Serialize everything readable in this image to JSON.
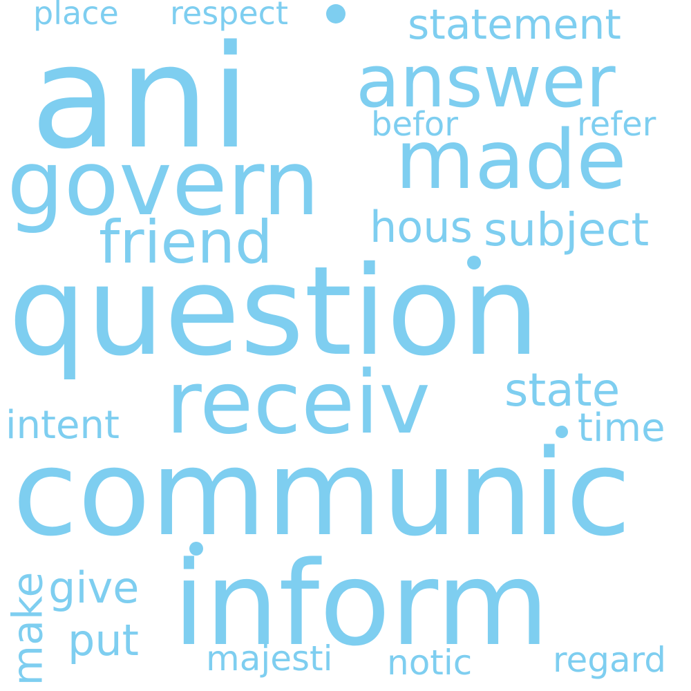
{
  "word_cloud": {
    "color": "#7ecef0",
    "background": "#ffffff",
    "words": {
      "ani": "ani",
      "answer": "answer",
      "statement": "statement",
      "place": "place",
      "respect": "respect",
      "befor": "befor",
      "refer": "refer",
      "made": "made",
      "govern": "govern",
      "friend": "friend",
      "hous": "hous",
      "subject": "subject",
      "question": "question",
      "receiv": "receiv",
      "state": "state",
      "intent": "intent",
      "time": "time",
      "communic": "communic",
      "inform": "inform",
      "give": "give",
      "put": "put",
      "majesti": "majesti",
      "notic": "notic",
      "regard": "regard",
      "make": "make"
    }
  }
}
